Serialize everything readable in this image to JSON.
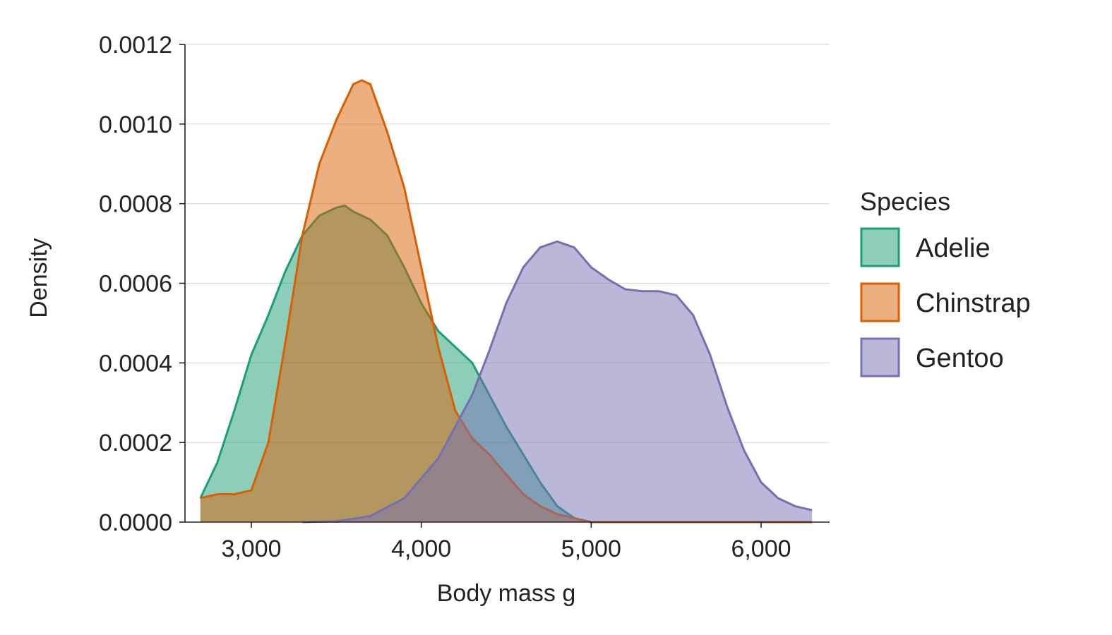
{
  "chart_data": {
    "type": "area",
    "subtype": "density",
    "xlabel": "Body mass g",
    "ylabel": "Density",
    "xlim": [
      2700,
      6400
    ],
    "ylim": [
      0,
      0.0012
    ],
    "x_ticks": [
      3000,
      4000,
      5000,
      6000
    ],
    "x_tick_labels": [
      "3,000",
      "4,000",
      "5,000",
      "6,000"
    ],
    "y_ticks": [
      0,
      0.0002,
      0.0004,
      0.0006,
      0.0008,
      0.001,
      0.0012
    ],
    "y_tick_labels": [
      "0.0000",
      "0.0002",
      "0.0004",
      "0.0006",
      "0.0008",
      "0.0010",
      "0.0012"
    ],
    "grid": {
      "horizontal": true,
      "vertical": false
    },
    "legend": {
      "title": "Species",
      "position": "right"
    },
    "fill_opacity": 0.5,
    "series": [
      {
        "name": "Adelie",
        "color": "#1b9e77",
        "points": [
          [
            2700,
            6e-05
          ],
          [
            2800,
            0.00015
          ],
          [
            2900,
            0.00028
          ],
          [
            3000,
            0.00042
          ],
          [
            3100,
            0.00052
          ],
          [
            3200,
            0.00063
          ],
          [
            3300,
            0.00072
          ],
          [
            3400,
            0.00077
          ],
          [
            3500,
            0.00079
          ],
          [
            3550,
            0.000795
          ],
          [
            3600,
            0.00078
          ],
          [
            3700,
            0.00076
          ],
          [
            3800,
            0.00072
          ],
          [
            3900,
            0.00064
          ],
          [
            4000,
            0.00055
          ],
          [
            4100,
            0.00048
          ],
          [
            4200,
            0.00044
          ],
          [
            4300,
            0.0004
          ],
          [
            4400,
            0.00032
          ],
          [
            4500,
            0.00024
          ],
          [
            4600,
            0.00017
          ],
          [
            4700,
            0.0001
          ],
          [
            4800,
            4e-05
          ],
          [
            4900,
            1e-05
          ],
          [
            5000,
            0.0
          ],
          [
            6300,
            0.0
          ]
        ]
      },
      {
        "name": "Chinstrap",
        "color": "#d95f02",
        "points": [
          [
            2700,
            6e-05
          ],
          [
            2800,
            7e-05
          ],
          [
            2900,
            7e-05
          ],
          [
            3000,
            8e-05
          ],
          [
            3100,
            0.0002
          ],
          [
            3200,
            0.00045
          ],
          [
            3300,
            0.00072
          ],
          [
            3400,
            0.0009
          ],
          [
            3500,
            0.00101
          ],
          [
            3600,
            0.0011
          ],
          [
            3650,
            0.00111
          ],
          [
            3700,
            0.0011
          ],
          [
            3800,
            0.00098
          ],
          [
            3900,
            0.00084
          ],
          [
            4000,
            0.00064
          ],
          [
            4100,
            0.00044
          ],
          [
            4200,
            0.00028
          ],
          [
            4300,
            0.00021
          ],
          [
            4400,
            0.00017
          ],
          [
            4500,
            0.00012
          ],
          [
            4600,
            7e-05
          ],
          [
            4700,
            4e-05
          ],
          [
            4800,
            2e-05
          ],
          [
            4900,
            1e-05
          ],
          [
            5000,
            0.0
          ],
          [
            6300,
            0.0
          ]
        ]
      },
      {
        "name": "Gentoo",
        "color": "#7570b3",
        "points": [
          [
            3300,
            0.0
          ],
          [
            3500,
            2e-06
          ],
          [
            3700,
            1.5e-05
          ],
          [
            3900,
            6e-05
          ],
          [
            4100,
            0.00016
          ],
          [
            4300,
            0.00032
          ],
          [
            4400,
            0.00043
          ],
          [
            4500,
            0.00055
          ],
          [
            4600,
            0.00064
          ],
          [
            4700,
            0.00069
          ],
          [
            4800,
            0.000705
          ],
          [
            4900,
            0.00069
          ],
          [
            5000,
            0.00064
          ],
          [
            5100,
            0.00061
          ],
          [
            5200,
            0.000585
          ],
          [
            5300,
            0.00058
          ],
          [
            5400,
            0.00058
          ],
          [
            5500,
            0.00057
          ],
          [
            5600,
            0.00052
          ],
          [
            5700,
            0.00042
          ],
          [
            5800,
            0.00029
          ],
          [
            5900,
            0.00018
          ],
          [
            6000,
            0.0001
          ],
          [
            6100,
            6e-05
          ],
          [
            6200,
            4e-05
          ],
          [
            6300,
            3e-05
          ]
        ]
      }
    ]
  }
}
